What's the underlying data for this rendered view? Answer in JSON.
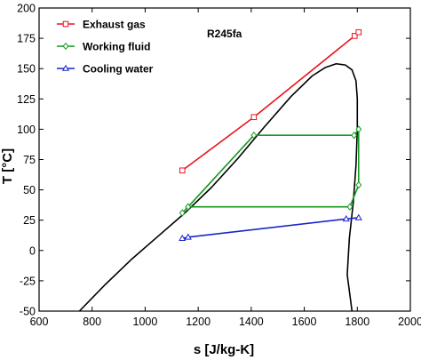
{
  "chart_data": {
    "type": "line",
    "xlabel": "s [J/kg-K]",
    "ylabel": "T [°C]",
    "xlim": [
      600,
      2000
    ],
    "ylim": [
      -50,
      200
    ],
    "x_ticks": [
      600,
      800,
      1000,
      1200,
      1400,
      1600,
      1800,
      2000
    ],
    "y_ticks": [
      -50,
      -25,
      0,
      25,
      50,
      75,
      100,
      125,
      150,
      175,
      200
    ],
    "annotation": "R245fa",
    "legend_position": "top-left",
    "saturation_dome": {
      "color": "#000000",
      "points": [
        [
          752,
          -50
        ],
        [
          850,
          -28
        ],
        [
          950,
          -7
        ],
        [
          1050,
          12
        ],
        [
          1150,
          31
        ],
        [
          1250,
          52
        ],
        [
          1350,
          76
        ],
        [
          1450,
          102
        ],
        [
          1550,
          127
        ],
        [
          1630,
          144
        ],
        [
          1680,
          151
        ],
        [
          1720,
          154
        ],
        [
          1755,
          153
        ],
        [
          1780,
          149
        ],
        [
          1795,
          140
        ],
        [
          1800,
          125
        ],
        [
          1800,
          100
        ],
        [
          1795,
          70
        ],
        [
          1785,
          40
        ],
        [
          1770,
          10
        ],
        [
          1762,
          -20
        ],
        [
          1780,
          -50
        ]
      ]
    },
    "series": [
      {
        "name": "Exhaust gas",
        "color": "#e8141c",
        "marker": "square",
        "points": [
          [
            1140,
            66
          ],
          [
            1410,
            110
          ],
          [
            1790,
            177
          ],
          [
            1805,
            180
          ]
        ]
      },
      {
        "name": "Working fluid",
        "color": "#139a1c",
        "marker": "diamond",
        "points": [
          [
            1140,
            31
          ],
          [
            1162,
            36
          ],
          [
            1410,
            95
          ],
          [
            1788,
            95
          ],
          [
            1805,
            100
          ],
          [
            1805,
            54
          ],
          [
            1772,
            36
          ],
          [
            1162,
            36
          ]
        ]
      },
      {
        "name": "Cooling water",
        "color": "#1a25c8",
        "marker": "triangle",
        "points": [
          [
            1140,
            10
          ],
          [
            1162,
            11
          ],
          [
            1758,
            26
          ],
          [
            1805,
            27
          ]
        ]
      }
    ]
  }
}
